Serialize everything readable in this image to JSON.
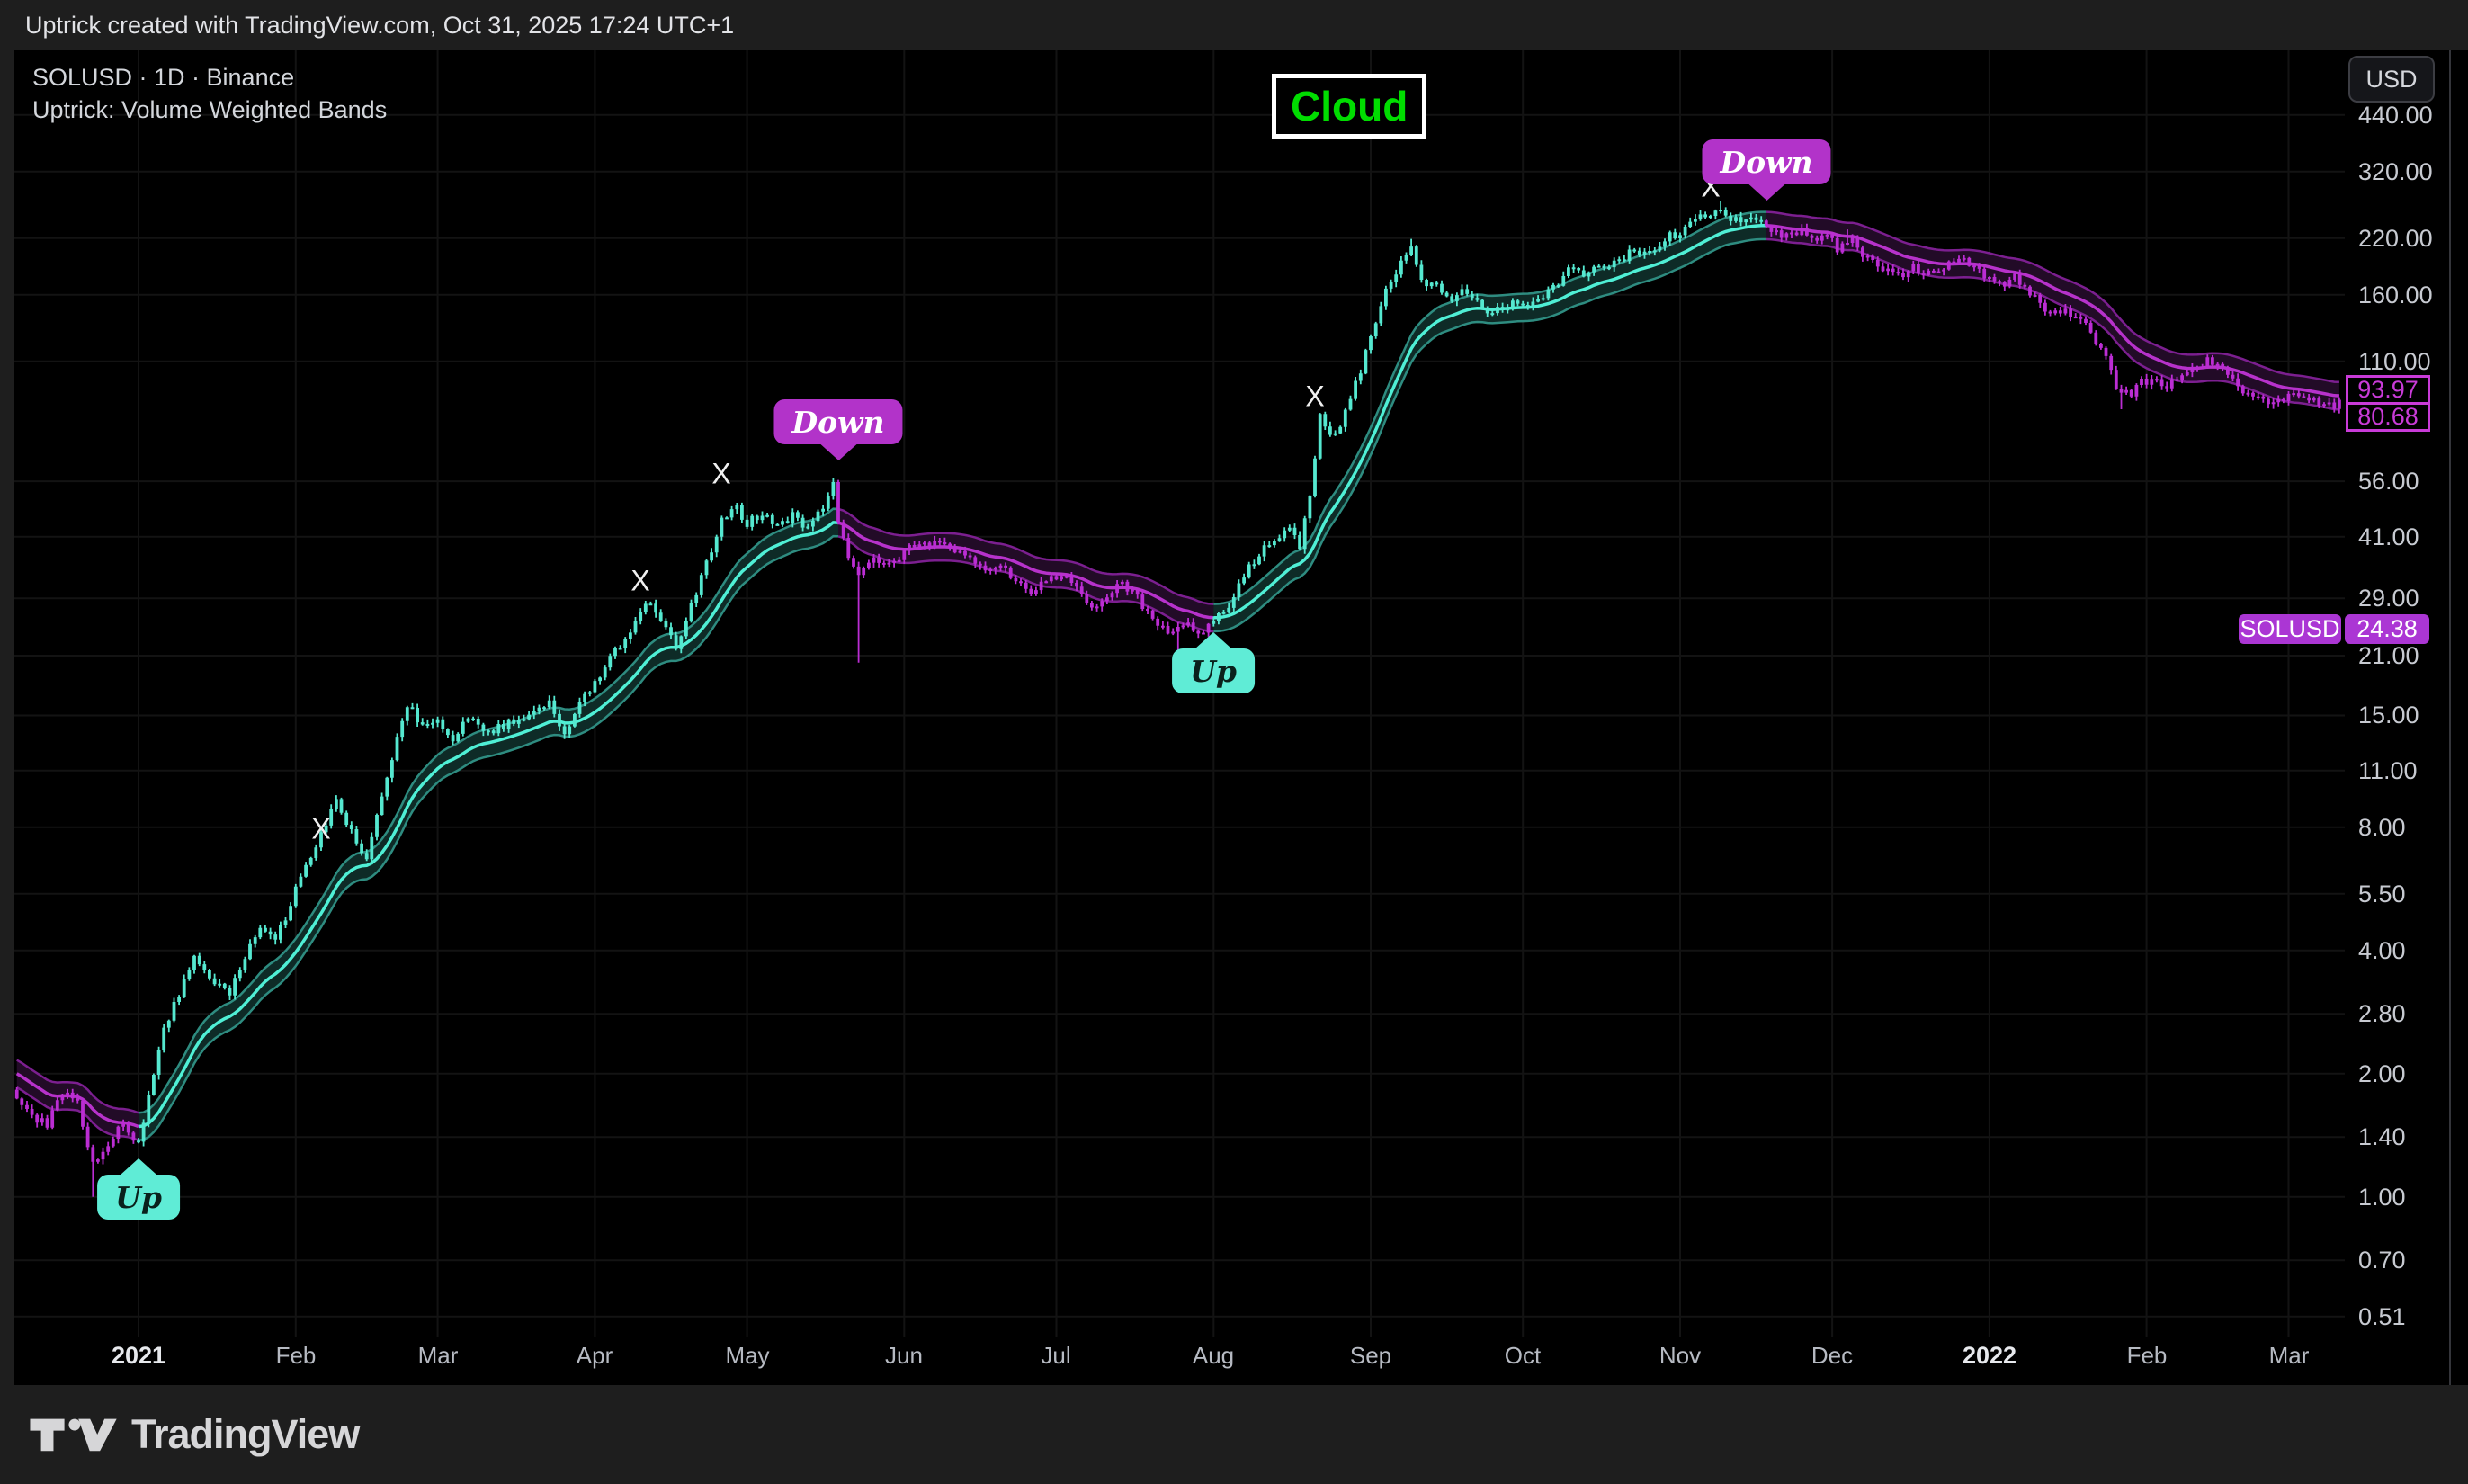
{
  "header": {
    "title": "Uptrick created with TradingView.com, Oct 31, 2025 17:24 UTC+1"
  },
  "legend": {
    "symbol_line": "SOLUSD · 1D · Binance",
    "indicator_line": "Uptrick: Volume Weighted Bands"
  },
  "overlay": {
    "cloud_label": "Cloud"
  },
  "axis": {
    "currency_button": "USD",
    "last_price_label": {
      "symbol": "SOLUSD",
      "price": "24.38"
    },
    "band_value_labels": [
      "93.97",
      "80.68"
    ]
  },
  "footer": {
    "brand": "TradingView"
  },
  "chart_data": {
    "type": "candlestick",
    "symbol": "SOLUSD",
    "interval": "1D",
    "exchange": "Binance",
    "indicator": "Uptrick: Volume Weighted Bands",
    "scale": "log",
    "day0_date": "2021-01-01",
    "x_range": {
      "start_day": -24,
      "end_day": 434
    },
    "last_price": 24.38,
    "exit_mark_glyph": "X",
    "price_ticks": [
      {
        "value": 440,
        "label": "440.00"
      },
      {
        "value": 320,
        "label": "320.00"
      },
      {
        "value": 220,
        "label": "220.00"
      },
      {
        "value": 160,
        "label": "160.00"
      },
      {
        "value": 110,
        "label": "110.00"
      },
      {
        "value": 56,
        "label": "56.00"
      },
      {
        "value": 41,
        "label": "41.00"
      },
      {
        "value": 29,
        "label": "29.00"
      },
      {
        "value": 21,
        "label": "21.00"
      },
      {
        "value": 15,
        "label": "15.00"
      },
      {
        "value": 11,
        "label": "11.00"
      },
      {
        "value": 8,
        "label": "8.00"
      },
      {
        "value": 5.5,
        "label": "5.50"
      },
      {
        "value": 4,
        "label": "4.00"
      },
      {
        "value": 2.8,
        "label": "2.80"
      },
      {
        "value": 2,
        "label": "2.00"
      },
      {
        "value": 1.4,
        "label": "1.40"
      },
      {
        "value": 1,
        "label": "1.00"
      },
      {
        "value": 0.7,
        "label": "0.70"
      },
      {
        "value": 0.51,
        "label": "0.51"
      }
    ],
    "month_ticks": [
      {
        "label": "2021",
        "day": 0,
        "bold": true
      },
      {
        "label": "Feb",
        "day": 31
      },
      {
        "label": "Mar",
        "day": 59
      },
      {
        "label": "Apr",
        "day": 90
      },
      {
        "label": "May",
        "day": 120
      },
      {
        "label": "Jun",
        "day": 151
      },
      {
        "label": "Jul",
        "day": 181
      },
      {
        "label": "Aug",
        "day": 212
      },
      {
        "label": "Sep",
        "day": 243
      },
      {
        "label": "Oct",
        "day": 273
      },
      {
        "label": "Nov",
        "day": 304
      },
      {
        "label": "Dec",
        "day": 334
      },
      {
        "label": "2022",
        "day": 365,
        "bold": true
      },
      {
        "label": "Feb",
        "day": 396
      },
      {
        "label": "Mar",
        "day": 424
      }
    ],
    "anchors": [
      [
        -25,
        1.85
      ],
      [
        -22,
        1.6
      ],
      [
        -18,
        1.5
      ],
      [
        -15,
        1.8
      ],
      [
        -12,
        1.7
      ],
      [
        -9,
        1.2
      ],
      [
        -6,
        1.35
      ],
      [
        -3,
        1.5
      ],
      [
        0,
        1.35
      ],
      [
        2,
        1.75
      ],
      [
        5,
        2.6
      ],
      [
        8,
        3.1
      ],
      [
        11,
        3.9
      ],
      [
        14,
        3.4
      ],
      [
        18,
        3.1
      ],
      [
        21,
        3.9
      ],
      [
        24,
        4.5
      ],
      [
        27,
        4.2
      ],
      [
        30,
        5.2
      ],
      [
        33,
        6.5
      ],
      [
        36,
        7.6
      ],
      [
        39,
        9.3
      ],
      [
        42,
        7.8
      ],
      [
        45,
        6.6
      ],
      [
        48,
        9.5
      ],
      [
        51,
        13.2
      ],
      [
        53,
        16
      ],
      [
        56,
        14
      ],
      [
        59,
        14.5
      ],
      [
        62,
        13.2
      ],
      [
        65,
        14.8
      ],
      [
        69,
        13.6
      ],
      [
        72,
        14.2
      ],
      [
        75,
        14.8
      ],
      [
        78,
        15.5
      ],
      [
        81,
        16.2
      ],
      [
        84,
        13.4
      ],
      [
        87,
        16
      ],
      [
        91,
        19
      ],
      [
        94,
        21.5
      ],
      [
        97,
        24
      ],
      [
        100,
        28.5
      ],
      [
        103,
        25.5
      ],
      [
        106,
        22
      ],
      [
        109,
        28
      ],
      [
        112,
        35
      ],
      [
        115,
        45
      ],
      [
        118,
        48
      ],
      [
        120,
        44
      ],
      [
        123,
        47
      ],
      [
        126,
        44
      ],
      [
        129,
        46
      ],
      [
        132,
        43
      ],
      [
        135,
        48
      ],
      [
        137,
        55
      ],
      [
        138,
        44
      ],
      [
        140,
        37
      ],
      [
        142,
        33
      ],
      [
        145,
        37
      ],
      [
        147,
        35
      ],
      [
        151,
        37.5
      ],
      [
        154,
        40
      ],
      [
        158,
        39
      ],
      [
        161,
        38
      ],
      [
        164,
        36
      ],
      [
        167,
        33.5
      ],
      [
        170,
        35.5
      ],
      [
        173,
        32
      ],
      [
        176,
        30
      ],
      [
        180,
        32.5
      ],
      [
        182,
        33
      ],
      [
        185,
        30.5
      ],
      [
        188,
        27.5
      ],
      [
        191,
        29.5
      ],
      [
        194,
        31.5
      ],
      [
        197,
        29
      ],
      [
        200,
        26
      ],
      [
        204,
        23.6
      ],
      [
        207,
        25.5
      ],
      [
        209,
        23.5
      ],
      [
        212,
        25.5
      ],
      [
        215,
        28
      ],
      [
        218,
        33
      ],
      [
        221,
        37
      ],
      [
        224,
        40.5
      ],
      [
        227,
        43.5
      ],
      [
        229,
        39
      ],
      [
        231,
        52
      ],
      [
        233,
        80
      ],
      [
        236,
        72
      ],
      [
        238,
        82
      ],
      [
        241,
        105
      ],
      [
        243,
        125
      ],
      [
        244,
        138
      ],
      [
        246,
        168
      ],
      [
        249,
        190
      ],
      [
        251,
        210
      ],
      [
        253,
        172
      ],
      [
        256,
        168
      ],
      [
        258,
        155
      ],
      [
        261,
        162
      ],
      [
        263,
        158
      ],
      [
        266,
        141
      ],
      [
        268,
        150
      ],
      [
        271,
        152
      ],
      [
        274,
        150
      ],
      [
        277,
        160
      ],
      [
        280,
        172
      ],
      [
        282,
        185
      ],
      [
        285,
        178
      ],
      [
        287,
        190
      ],
      [
        290,
        185
      ],
      [
        292,
        194
      ],
      [
        295,
        205
      ],
      [
        297,
        200
      ],
      [
        300,
        210
      ],
      [
        302,
        222
      ],
      [
        305,
        230
      ],
      [
        307,
        245
      ],
      [
        310,
        252
      ],
      [
        312,
        258
      ],
      [
        315,
        242
      ],
      [
        317,
        248
      ],
      [
        320,
        240
      ],
      [
        322,
        232
      ],
      [
        325,
        221
      ],
      [
        328,
        228
      ],
      [
        330,
        218
      ],
      [
        333,
        225
      ],
      [
        335,
        205
      ],
      [
        338,
        222
      ],
      [
        340,
        198
      ],
      [
        343,
        190
      ],
      [
        345,
        185
      ],
      [
        348,
        177
      ],
      [
        350,
        186
      ],
      [
        353,
        180
      ],
      [
        355,
        184
      ],
      [
        358,
        191
      ],
      [
        360,
        193
      ],
      [
        363,
        183
      ],
      [
        365,
        175
      ],
      [
        368,
        171
      ],
      [
        370,
        176
      ],
      [
        373,
        162
      ],
      [
        375,
        152
      ],
      [
        378,
        143
      ],
      [
        380,
        146
      ],
      [
        383,
        138
      ],
      [
        385,
        130
      ],
      [
        388,
        112
      ],
      [
        390,
        95
      ],
      [
        393,
        92
      ],
      [
        395,
        98
      ],
      [
        398,
        99
      ],
      [
        400,
        96
      ],
      [
        403,
        101
      ],
      [
        406,
        107
      ],
      [
        408,
        110
      ],
      [
        411,
        104
      ],
      [
        413,
        98
      ],
      [
        416,
        92
      ],
      [
        418,
        90
      ],
      [
        421,
        87
      ],
      [
        423,
        89
      ],
      [
        426,
        92
      ],
      [
        428,
        89
      ],
      [
        431,
        87
      ],
      [
        433,
        86
      ],
      [
        434,
        90
      ]
    ],
    "trend_segments": [
      {
        "from": -25,
        "to": 0,
        "dir": "down"
      },
      {
        "from": 0,
        "to": 138,
        "dir": "up"
      },
      {
        "from": 138,
        "to": 212,
        "dir": "down"
      },
      {
        "from": 212,
        "to": 321,
        "dir": "up"
      },
      {
        "from": 321,
        "to": 434,
        "dir": "down"
      }
    ],
    "signals": [
      {
        "dir": "up",
        "day": 0,
        "price": 1.28,
        "label": "Up"
      },
      {
        "dir": "down",
        "day": 138,
        "price": 61,
        "label": "Down"
      },
      {
        "dir": "up",
        "day": 212,
        "price": 24.7,
        "label": "Up"
      },
      {
        "dir": "down",
        "day": 321,
        "price": 263,
        "label": "Down"
      }
    ],
    "exit_marks": [
      {
        "day": 36,
        "price": 7.9
      },
      {
        "day": 99,
        "price": 32
      },
      {
        "day": 115,
        "price": 58.3
      },
      {
        "day": 232,
        "price": 90.2
      },
      {
        "day": 310,
        "price": 292.9
      }
    ],
    "special_wicks": [
      {
        "day": -9,
        "low": 1.0
      },
      {
        "day": 142,
        "low": 20.2
      },
      {
        "day": 205,
        "low": 21.3
      },
      {
        "day": 391,
        "low": 84
      },
      {
        "day": 251,
        "high": 219
      },
      {
        "day": 312,
        "high": 271
      },
      {
        "day": 337,
        "high": 231
      }
    ],
    "band": {
      "ema_period": 20,
      "half_width_pct": 8,
      "upper_value": 93.97,
      "lower_value": 80.68
    },
    "colors": {
      "background": "#000000",
      "frame": "#1e1e1e",
      "up_candle": "#55e8d0",
      "down_candle": "#bb2dd3",
      "up_band_edge": "#2e8c80",
      "up_band_center": "#4fefd5",
      "up_band_fill": "#0e2b27",
      "down_band_edge": "#7c1f90",
      "down_band_center": "#b732cb",
      "down_band_fill": "#220b27",
      "grid": "#131313",
      "axis_text": "#c7cad1",
      "separator": "#34353a",
      "signal_up_bg": "#5fecd6",
      "signal_up_text": "#0a211c",
      "signal_down_bg": "#b233c9",
      "signal_down_text": "#ffffff",
      "price_label_bg": "#ab36d4",
      "band_label": "#c93bd8",
      "cloud_green": "#00dd00",
      "exit_mark": "#f0f0f0"
    }
  }
}
